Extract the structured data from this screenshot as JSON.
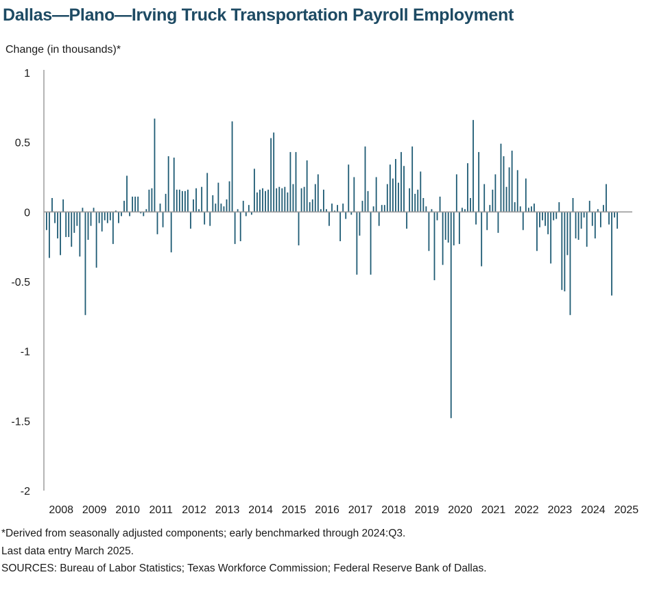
{
  "chart_data": {
    "type": "bar",
    "title": "Dallas—Plano—Irving Truck Transportation Payroll Employment",
    "ylabel": "Change (in thousands)*",
    "xlabel": "",
    "ylim": [
      -2,
      1
    ],
    "yticks": [
      {
        "value": 1,
        "label": "1"
      },
      {
        "value": 0.5,
        "label": "0.5"
      },
      {
        "value": 0,
        "label": "0"
      },
      {
        "value": -0.5,
        "label": "-0.5"
      },
      {
        "value": -1,
        "label": "-1"
      },
      {
        "value": -1.5,
        "label": "-1.5"
      },
      {
        "value": -2,
        "label": "-2"
      }
    ],
    "xticks": [
      "2008",
      "2009",
      "2010",
      "2011",
      "2012",
      "2013",
      "2014",
      "2015",
      "2016",
      "2017",
      "2018",
      "2019",
      "2020",
      "2021",
      "2022",
      "2023",
      "2024",
      "2025"
    ],
    "start": "2008-01",
    "frequency": "monthly",
    "bar_color": "#1d5a73",
    "values": [
      -0.13,
      -0.33,
      0.1,
      -0.08,
      -0.19,
      -0.31,
      0.09,
      -0.18,
      -0.18,
      -0.25,
      -0.15,
      -0.1,
      -0.32,
      0.03,
      -0.74,
      -0.2,
      -0.1,
      0.03,
      -0.4,
      -0.08,
      -0.14,
      -0.06,
      -0.08,
      -0.06,
      -0.23,
      0.01,
      -0.08,
      -0.03,
      0.08,
      0.26,
      -0.03,
      0.11,
      0.11,
      0.11,
      -0.01,
      -0.03,
      0.02,
      0.16,
      0.17,
      0.67,
      -0.16,
      0.06,
      -0.11,
      0.13,
      0.4,
      -0.29,
      0.39,
      0.16,
      0.16,
      0.15,
      0.15,
      0.16,
      -0.12,
      0.09,
      0.17,
      0.02,
      0.18,
      -0.09,
      0.28,
      -0.1,
      0.12,
      0.06,
      0.21,
      0.06,
      0.04,
      0.09,
      0.22,
      0.65,
      -0.23,
      0.02,
      -0.21,
      0.08,
      -0.03,
      0.05,
      -0.02,
      0.31,
      0.14,
      0.16,
      0.17,
      0.15,
      0.16,
      0.53,
      0.57,
      0.17,
      0.18,
      0.17,
      0.18,
      0.14,
      0.43,
      0.2,
      0.43,
      -0.24,
      0.17,
      0.18,
      0.37,
      0.07,
      0.09,
      0.2,
      0.27,
      0.02,
      0.16,
      0.02,
      -0.1,
      0.06,
      0.01,
      0.05,
      -0.21,
      0.06,
      -0.05,
      0.34,
      -0.02,
      0.25,
      -0.45,
      -0.17,
      0.08,
      0.47,
      0.15,
      -0.45,
      0.04,
      0.25,
      -0.1,
      0.05,
      0.05,
      0.2,
      0.34,
      0.24,
      0.38,
      0.21,
      0.43,
      0.33,
      -0.12,
      0.17,
      0.47,
      0.13,
      0.16,
      0.29,
      0.1,
      0.04,
      -0.28,
      0.02,
      -0.49,
      -0.06,
      0.11,
      -0.38,
      -0.2,
      -0.22,
      -1.48,
      -0.24,
      0.27,
      -0.23,
      0.03,
      0.02,
      0.35,
      0.1,
      0.66,
      -0.09,
      0.43,
      -0.39,
      0.2,
      -0.13,
      0.05,
      0.16,
      0.27,
      -0.15,
      0.49,
      0.4,
      0.18,
      0.32,
      0.44,
      0.07,
      0.3,
      0.04,
      -0.13,
      0.24,
      0.03,
      0.04,
      0.06,
      -0.28,
      -0.11,
      -0.06,
      -0.1,
      -0.16,
      -0.37,
      -0.06,
      -0.05,
      0.07,
      -0.56,
      -0.57,
      -0.31,
      -0.74,
      0.1,
      -0.19,
      -0.2,
      -0.12,
      -0.04,
      -0.25,
      0.08,
      -0.1,
      -0.19,
      0.02,
      -0.11,
      0.05,
      0.2,
      -0.09,
      -0.6,
      -0.04,
      -0.12
    ]
  },
  "footnotes": {
    "note1": "*Derived from seasonally adjusted components; early benchmarked through 2024:Q3.",
    "note2": "Last data entry March 2025.",
    "sources": "SOURCES:  Bureau of Labor Statistics; Texas Workforce Commission;  Federal Reserve Bank of Dallas."
  }
}
